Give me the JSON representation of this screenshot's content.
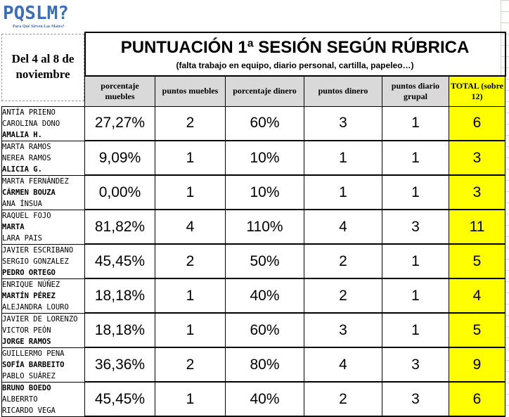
{
  "logo": {
    "title": "PQSLM?",
    "tagline": "Para Qué Sirven Las Mates?"
  },
  "date_label": "Del 4 al 8 de noviembre",
  "title": "PUNTUACIÓN 1ª SESIÓN SEGÚN RÚBRICA",
  "subtitle": "(falta trabajo en equipo, diario personal, cartilla, papeleo…)",
  "columns": [
    "porcentaje muebles",
    "puntos muebles",
    "porcentaje dinero",
    "puntos dinero",
    "puntos diario grupal",
    "TOTAL (sobre 12)"
  ],
  "rows": [
    {
      "names": [
        {
          "text": "ANTÍA PRIENO",
          "bold": false
        },
        {
          "text": "CAROLINA DONO",
          "bold": false
        },
        {
          "text": "AMALIA H.",
          "bold": true
        }
      ],
      "pct_muebles": "27,27%",
      "pts_muebles": "2",
      "pct_dinero": "60%",
      "pts_dinero": "3",
      "pts_diario": "1",
      "total": "6"
    },
    {
      "names": [
        {
          "text": "MARTA RAMOS",
          "bold": false
        },
        {
          "text": "NEREA RAMOS",
          "bold": false
        },
        {
          "text": "ALICIA G.",
          "bold": true
        }
      ],
      "pct_muebles": "9,09%",
      "pts_muebles": "1",
      "pct_dinero": "10%",
      "pts_dinero": "1",
      "pts_diario": "1",
      "total": "3"
    },
    {
      "names": [
        {
          "text": "MARTA FERNÁNDEZ",
          "bold": false
        },
        {
          "text": "CÁRMEN BOUZA",
          "bold": true
        },
        {
          "text": "ANA ÍNSUA",
          "bold": false
        }
      ],
      "pct_muebles": "0,00%",
      "pts_muebles": "1",
      "pct_dinero": "10%",
      "pts_dinero": "1",
      "pts_diario": "1",
      "total": "3"
    },
    {
      "names": [
        {
          "text": "RAQUEL FOJO",
          "bold": false
        },
        {
          "text": "MARTA",
          "bold": true
        },
        {
          "text": "LARA PAIS",
          "bold": false
        }
      ],
      "pct_muebles": "81,82%",
      "pts_muebles": "4",
      "pct_dinero": "110%",
      "pts_dinero": "4",
      "pts_diario": "3",
      "total": "11"
    },
    {
      "names": [
        {
          "text": "JAVIER ESCRIBANO",
          "bold": false
        },
        {
          "text": "SERGIO GONZALEZ",
          "bold": false
        },
        {
          "text": "PEDRO ORTEGO",
          "bold": true
        }
      ],
      "pct_muebles": "45,45%",
      "pts_muebles": "2",
      "pct_dinero": "50%",
      "pts_dinero": "2",
      "pts_diario": "1",
      "total": "5"
    },
    {
      "names": [
        {
          "text": "ENRIQUE NÚÑEZ",
          "bold": false
        },
        {
          "text": "MARTÍN PÉREZ",
          "bold": true
        },
        {
          "text": "ALEJANDRA LOURO",
          "bold": false
        }
      ],
      "pct_muebles": "18,18%",
      "pts_muebles": "1",
      "pct_dinero": "40%",
      "pts_dinero": "2",
      "pts_diario": "1",
      "total": "4"
    },
    {
      "names": [
        {
          "text": "JAVIER DE LORENZO",
          "bold": false
        },
        {
          "text": "VICTOR PEÓN",
          "bold": false
        },
        {
          "text": "JORGE RAMOS",
          "bold": true
        }
      ],
      "pct_muebles": "18,18%",
      "pts_muebles": "1",
      "pct_dinero": "60%",
      "pts_dinero": "3",
      "pts_diario": "1",
      "total": "5"
    },
    {
      "names": [
        {
          "text": "GUILLERMO PENA",
          "bold": false
        },
        {
          "text": "SOFÍA BARBEITO",
          "bold": true
        },
        {
          "text": "PABLO SUÁREZ",
          "bold": false
        }
      ],
      "pct_muebles": "36,36%",
      "pts_muebles": "2",
      "pct_dinero": "80%",
      "pts_dinero": "4",
      "pts_diario": "3",
      "total": "9"
    },
    {
      "names": [
        {
          "text": "BRUNO BOEDO",
          "bold": true
        },
        {
          "text": "ALBERRTO",
          "bold": false
        },
        {
          "text": "RICARDO VEGA",
          "bold": false
        }
      ],
      "pct_muebles": "45,45%",
      "pts_muebles": "1",
      "pct_dinero": "40%",
      "pts_dinero": "2",
      "pts_diario": "3",
      "total": "6"
    }
  ],
  "colors": {
    "total_highlight": "#ffff00",
    "header_gray": "#d9d9d9",
    "logo_blue": "#3f6fb0"
  }
}
